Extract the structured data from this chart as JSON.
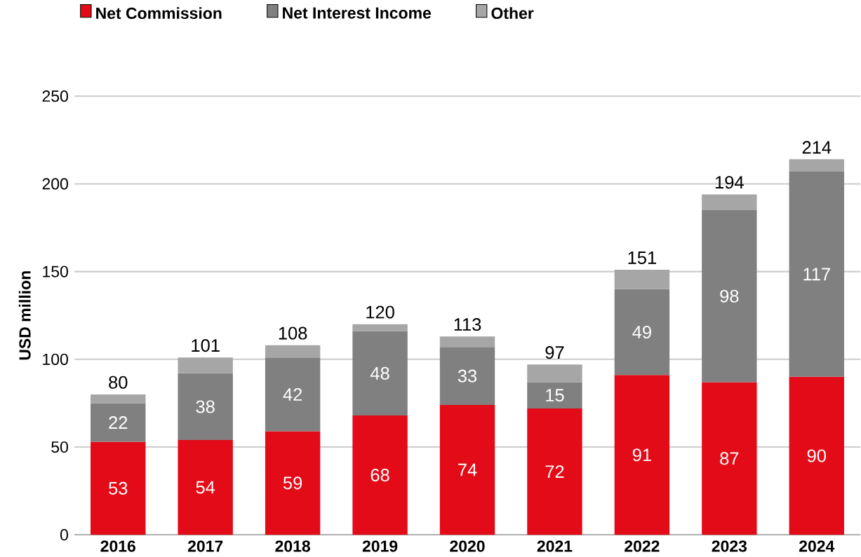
{
  "chart_data": {
    "type": "bar",
    "stacked": true,
    "ylabel": "USD million",
    "categories": [
      "2016",
      "2017",
      "2018",
      "2019",
      "2020",
      "2021",
      "2022",
      "2023",
      "2024"
    ],
    "series": [
      {
        "name": "Net Commission",
        "color": "#e30b17",
        "values": [
          53,
          54,
          59,
          68,
          74,
          72,
          91,
          87,
          90
        ],
        "value_labels": [
          "53",
          "54",
          "59",
          "68",
          "74",
          "72",
          "91",
          "87",
          "90"
        ]
      },
      {
        "name": "Net Interest Income",
        "color": "#808080",
        "values": [
          22,
          38,
          42,
          48,
          33,
          15,
          49,
          98,
          117
        ],
        "value_labels": [
          "22",
          "38",
          "42",
          "48",
          "33",
          "15",
          "49",
          "98",
          "117"
        ]
      },
      {
        "name": "Other",
        "color": "#a6a6a6",
        "values": [
          5,
          9,
          7,
          4,
          6,
          10,
          11,
          9,
          7
        ]
      }
    ],
    "totals": [
      "80",
      "101",
      "108",
      "120",
      "113",
      "97",
      "151",
      "194",
      "214"
    ],
    "ylim": [
      0,
      250
    ],
    "yticks": [
      0,
      50,
      100,
      150,
      200,
      250
    ],
    "grid": "y",
    "legend": "top left"
  }
}
